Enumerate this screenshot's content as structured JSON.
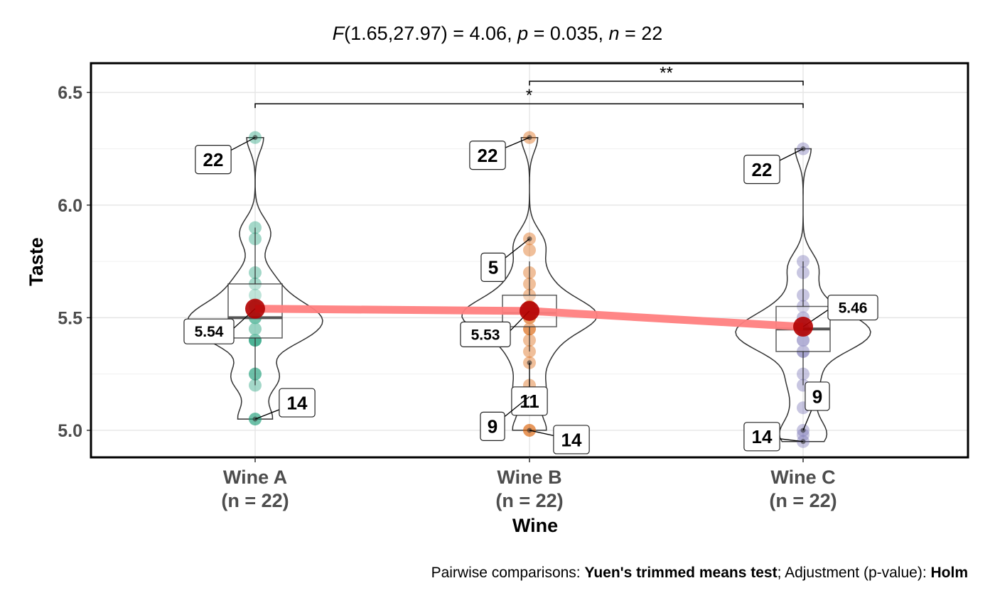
{
  "stats_subtitle": {
    "stat_symbol": "F",
    "stat_value": "(1.65,27.97) = 4.06",
    "p_symbol": "p",
    "p_value": " = 0.035",
    "n_symbol": "n",
    "n_value": " = 22"
  },
  "caption": {
    "prefix": "Pairwise comparisons: ",
    "test": "Yuen's trimmed means test",
    "middle": "; Adjustment (p-value): ",
    "adjustment": "Holm"
  },
  "chart_data": {
    "type": "violin-box-scatter",
    "xlabel": "Wine",
    "ylabel": "Taste",
    "ylim": [
      4.88,
      6.63
    ],
    "yticks": [
      5.0,
      5.5,
      6.0,
      6.5
    ],
    "ytick_labels": [
      "5.0",
      "5.5",
      "6.0",
      "6.5"
    ],
    "grid": true,
    "groups": [
      {
        "category": "Wine A",
        "n_label": "(n = 22)",
        "color": "#1B9E77",
        "points": [
          6.3,
          5.9,
          5.85,
          5.7,
          5.65,
          5.6,
          5.55,
          5.55,
          5.5,
          5.5,
          5.5,
          5.5,
          5.45,
          5.45,
          5.4,
          5.4,
          5.4,
          5.25,
          5.25,
          5.2,
          5.05,
          5.05
        ],
        "box": {
          "q1": 5.41,
          "median": 5.5,
          "q3": 5.65,
          "whisker_low": 5.2,
          "whisker_high": 5.9
        },
        "mean": 5.54,
        "mean_label": "5.54",
        "outliers": [
          {
            "value": 6.3,
            "label": "22"
          },
          {
            "value": 5.05,
            "label": "14"
          }
        ]
      },
      {
        "category": "Wine B",
        "n_label": "(n = 22)",
        "color": "#D95F02",
        "points": [
          6.3,
          5.85,
          5.8,
          5.7,
          5.65,
          5.6,
          5.55,
          5.55,
          5.55,
          5.5,
          5.5,
          5.5,
          5.5,
          5.45,
          5.45,
          5.4,
          5.35,
          5.3,
          5.2,
          5.15,
          5.0,
          5.0
        ],
        "box": {
          "q1": 5.46,
          "median": 5.52,
          "q3": 5.6,
          "whisker_low": 5.35,
          "whisker_high": 5.75
        },
        "mean": 5.53,
        "mean_label": "5.53",
        "outliers": [
          {
            "value": 6.3,
            "label": "22"
          },
          {
            "value": 5.85,
            "label": "5"
          },
          {
            "value": 5.3,
            "label": "11"
          },
          {
            "value": 5.15,
            "label": "9"
          },
          {
            "value": 5.0,
            "label": "14"
          }
        ]
      },
      {
        "category": "Wine C",
        "n_label": "(n = 22)",
        "color": "#7570B3",
        "points": [
          6.25,
          5.75,
          5.7,
          5.6,
          5.55,
          5.5,
          5.5,
          5.45,
          5.45,
          5.45,
          5.45,
          5.4,
          5.4,
          5.4,
          5.35,
          5.35,
          5.25,
          5.2,
          5.1,
          5.0,
          4.98,
          4.95
        ],
        "box": {
          "q1": 5.35,
          "median": 5.45,
          "q3": 5.55,
          "whisker_low": 5.2,
          "whisker_high": 5.75
        },
        "mean": 5.46,
        "mean_label": "5.46",
        "outliers": [
          {
            "value": 6.25,
            "label": "22"
          },
          {
            "value": 5.0,
            "label": "9"
          },
          {
            "value": 4.95,
            "label": "14"
          }
        ]
      }
    ],
    "mean_line_color": "#FF7F7F",
    "mean_point_color": "#B30000",
    "significance": [
      {
        "from": "Wine A",
        "to": "Wine C",
        "label": "*",
        "y": 6.45
      },
      {
        "from": "Wine B",
        "to": "Wine C",
        "label": "**",
        "y": 6.55
      }
    ]
  }
}
